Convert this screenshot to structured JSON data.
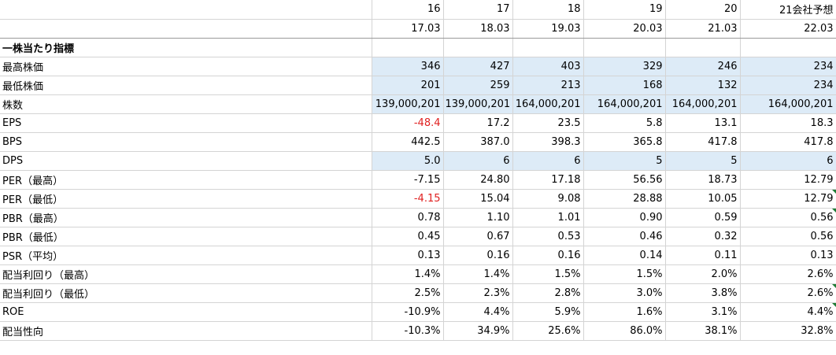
{
  "header": {
    "fiscal_years": [
      "16",
      "17",
      "18",
      "19",
      "20",
      "21会社予想"
    ],
    "period_ends": [
      "17.03",
      "18.03",
      "19.03",
      "20.03",
      "21.03",
      "22.03"
    ]
  },
  "section_title": "一株当たり指標",
  "rows": [
    {
      "label": "最高株価",
      "values": [
        "346",
        "427",
        "403",
        "329",
        "246",
        "234"
      ],
      "highlight": true
    },
    {
      "label": "最低株価",
      "values": [
        "201",
        "259",
        "213",
        "168",
        "132",
        "234"
      ],
      "highlight": true
    },
    {
      "label": "株数",
      "values": [
        "139,000,201",
        "139,000,201",
        "164,000,201",
        "164,000,201",
        "164,000,201",
        "164,000,201"
      ],
      "highlight": true
    },
    {
      "label": "EPS",
      "values": [
        "-48.4",
        "17.2",
        "23.5",
        "5.8",
        "13.1",
        "18.3"
      ],
      "highlight": false,
      "negative_red": [
        0
      ]
    },
    {
      "label": "BPS",
      "values": [
        "442.5",
        "387.0",
        "398.3",
        "365.8",
        "417.8",
        "417.8"
      ],
      "highlight": false
    },
    {
      "label": "DPS",
      "values": [
        "5.0",
        "6",
        "6",
        "5",
        "5",
        "6"
      ],
      "highlight": true
    },
    {
      "label": "PER（最高）",
      "values": [
        "-7.15",
        "24.80",
        "17.18",
        "56.56",
        "18.73",
        "12.79"
      ],
      "highlight": false
    },
    {
      "label": "PER（最低）",
      "values": [
        "-4.15",
        "15.04",
        "9.08",
        "28.88",
        "10.05",
        "12.79"
      ],
      "highlight": false,
      "negative_red": [
        0
      ]
    },
    {
      "label": "PBR（最高）",
      "values": [
        "0.78",
        "1.10",
        "1.01",
        "0.90",
        "0.59",
        "0.56"
      ],
      "highlight": false
    },
    {
      "label": "PBR（最低）",
      "values": [
        "0.45",
        "0.67",
        "0.53",
        "0.46",
        "0.32",
        "0.56"
      ],
      "highlight": false
    },
    {
      "label": "PSR（平均）",
      "values": [
        "0.13",
        "0.16",
        "0.16",
        "0.14",
        "0.11",
        "0.13"
      ],
      "highlight": false
    },
    {
      "label": "配当利回り（最高）",
      "values": [
        "1.4%",
        "1.4%",
        "1.5%",
        "1.5%",
        "2.0%",
        "2.6%"
      ],
      "highlight": false
    },
    {
      "label": "配当利回り（最低）",
      "values": [
        "2.5%",
        "2.3%",
        "2.8%",
        "3.0%",
        "3.8%",
        "2.6%"
      ],
      "highlight": false
    },
    {
      "label": "ROE",
      "values": [
        "-10.9%",
        "4.4%",
        "5.9%",
        "1.6%",
        "3.1%",
        "4.4%"
      ],
      "highlight": false
    },
    {
      "label": "配当性向",
      "values": [
        "-10.3%",
        "34.9%",
        "25.6%",
        "86.0%",
        "38.1%",
        "32.8%"
      ],
      "highlight": false
    }
  ],
  "colors": {
    "highlight_fill": "#ddebf7",
    "negative_text": "#e02020",
    "comment_marker": "#1e7b34"
  },
  "comment_marker_rows": [
    "PER（最低）",
    "PBR（最高）",
    "配当利回り（最低）",
    "ROE"
  ]
}
